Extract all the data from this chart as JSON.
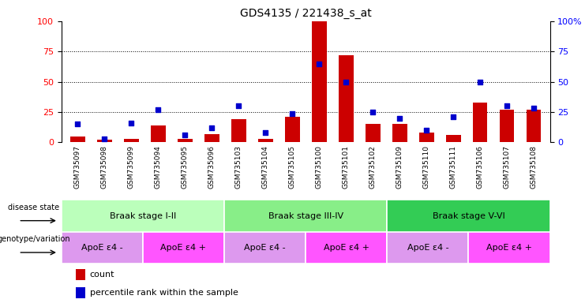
{
  "title": "GDS4135 / 221438_s_at",
  "samples": [
    "GSM735097",
    "GSM735098",
    "GSM735099",
    "GSM735094",
    "GSM735095",
    "GSM735096",
    "GSM735103",
    "GSM735104",
    "GSM735105",
    "GSM735100",
    "GSM735101",
    "GSM735102",
    "GSM735109",
    "GSM735110",
    "GSM735111",
    "GSM735106",
    "GSM735107",
    "GSM735108"
  ],
  "counts": [
    5,
    2,
    3,
    14,
    3,
    7,
    19,
    3,
    21,
    100,
    72,
    15,
    15,
    8,
    6,
    33,
    27,
    27
  ],
  "percentile": [
    15,
    3,
    16,
    27,
    6,
    12,
    30,
    8,
    24,
    65,
    50,
    25,
    20,
    10,
    21,
    50,
    30,
    28
  ],
  "disease_state_groups": [
    {
      "label": "Braak stage I-II",
      "start": 0,
      "end": 6,
      "color": "#bbffbb"
    },
    {
      "label": "Braak stage III-IV",
      "start": 6,
      "end": 12,
      "color": "#88ee88"
    },
    {
      "label": "Braak stage V-VI",
      "start": 12,
      "end": 18,
      "color": "#33cc55"
    }
  ],
  "genotype_groups": [
    {
      "label": "ApoE ε4 -",
      "start": 0,
      "end": 3,
      "color": "#dd99ee"
    },
    {
      "label": "ApoE ε4 +",
      "start": 3,
      "end": 6,
      "color": "#ff55ff"
    },
    {
      "label": "ApoE ε4 -",
      "start": 6,
      "end": 9,
      "color": "#dd99ee"
    },
    {
      "label": "ApoE ε4 +",
      "start": 9,
      "end": 12,
      "color": "#ff55ff"
    },
    {
      "label": "ApoE ε4 -",
      "start": 12,
      "end": 15,
      "color": "#dd99ee"
    },
    {
      "label": "ApoE ε4 +",
      "start": 15,
      "end": 18,
      "color": "#ff55ff"
    }
  ],
  "bar_color": "#cc0000",
  "dot_color": "#0000cc",
  "ylim": [
    0,
    100
  ],
  "yticks": [
    0,
    25,
    50,
    75,
    100
  ],
  "xtick_bg": "#cccccc",
  "background_color": "#ffffff"
}
